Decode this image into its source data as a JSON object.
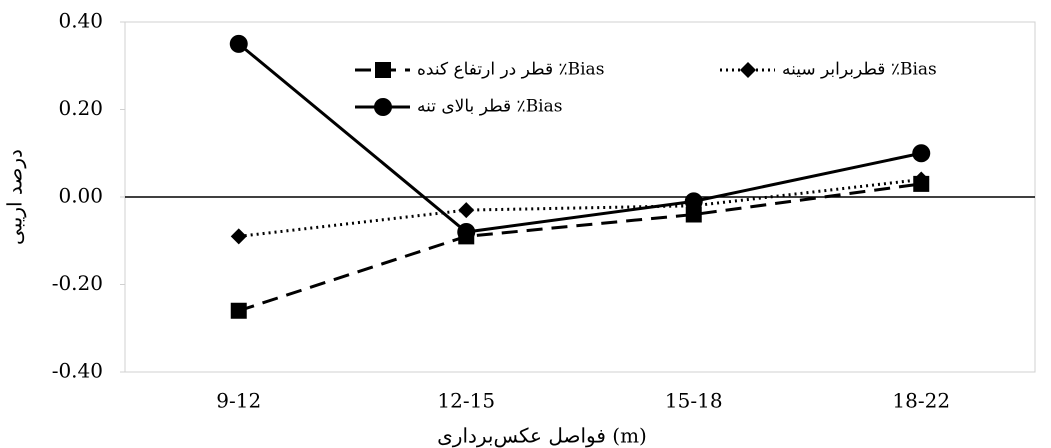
{
  "chart_data": {
    "type": "line",
    "x_label": "فواصل عکس‌برداری (m)",
    "y_label": "درصد اریبی",
    "categories": [
      "9-12",
      "12-15",
      "15-18",
      "18-22"
    ],
    "series": [
      {
        "name": "قطر در ارتفاع کنده ٪Bias",
        "color": "#000000",
        "dash": "dashed",
        "marker": "square",
        "values": [
          -0.26,
          -0.09,
          -0.04,
          0.03
        ]
      },
      {
        "name": "قطربرابر سینه ٪Bias",
        "color": "#000000",
        "dash": "dotted",
        "marker": "diamond",
        "values": [
          -0.09,
          -0.03,
          -0.02,
          0.04
        ]
      },
      {
        "name": "قطر بالای تنه ٪Bias",
        "color": "#000000",
        "dash": "solid",
        "marker": "circle",
        "values": [
          0.35,
          -0.08,
          -0.01,
          0.1
        ]
      }
    ],
    "ylim": [
      -0.4,
      0.4
    ],
    "yticks": [
      {
        "value": -0.4,
        "label": "-0.40"
      },
      {
        "value": -0.2,
        "label": "-0.20"
      },
      {
        "value": 0,
        "label": "0.00"
      },
      {
        "value": 0.2,
        "label": "0.20"
      },
      {
        "value": 0.4,
        "label": "0.40"
      }
    ],
    "grid": false,
    "legend": "top"
  }
}
